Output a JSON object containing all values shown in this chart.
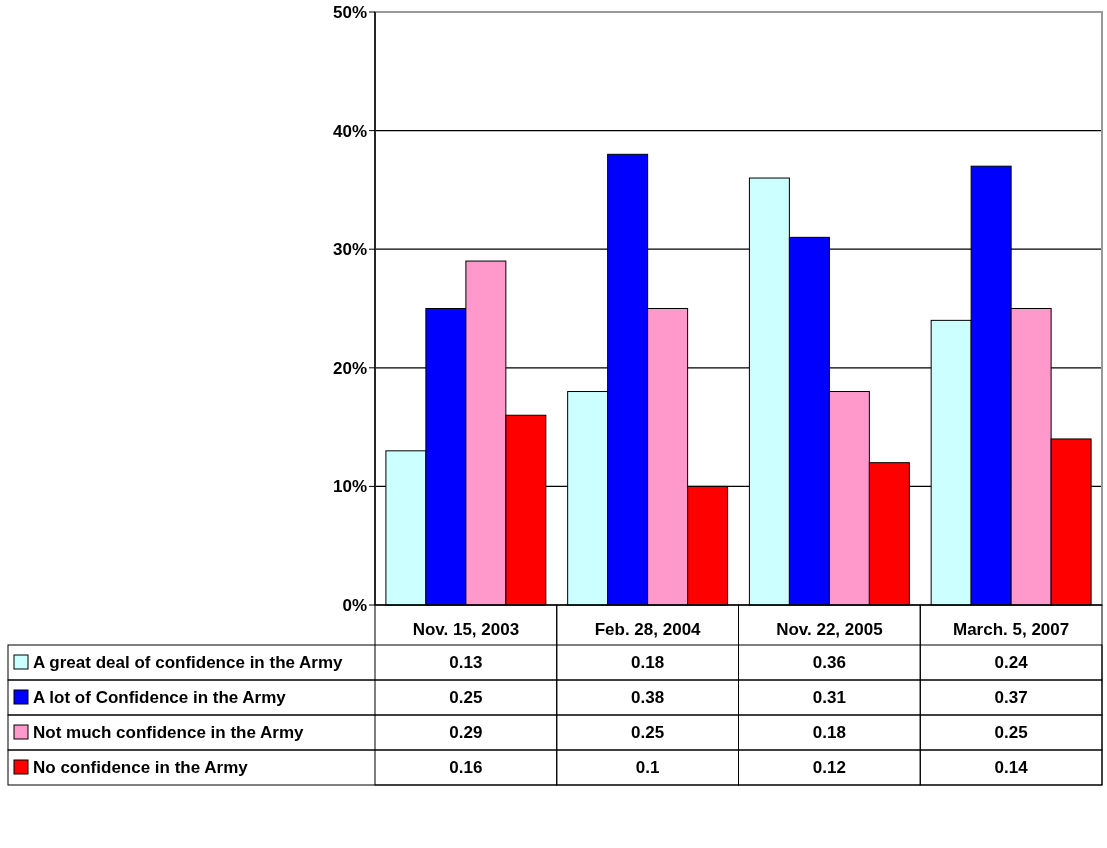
{
  "chart_data": {
    "type": "bar",
    "categories": [
      "Nov. 15, 2003",
      "Feb. 28, 2004",
      "Nov. 22, 2005",
      "March. 5, 2007"
    ],
    "series": [
      {
        "name": "A great deal of confidence in the Army",
        "color": "#ccffff",
        "values": [
          0.13,
          0.18,
          0.36,
          0.24
        ]
      },
      {
        "name": "A lot of Confidence in the Army",
        "color": "#0000ff",
        "values": [
          0.25,
          0.38,
          0.31,
          0.37
        ]
      },
      {
        "name": "Not much confidence in the Army",
        "color": "#ff99cc",
        "values": [
          0.29,
          0.25,
          0.18,
          0.25
        ]
      },
      {
        "name": "No confidence in the Army",
        "color": "#ff0000",
        "values": [
          0.16,
          0.1,
          0.12,
          0.14
        ]
      }
    ],
    "ylim": [
      0,
      0.5
    ],
    "yticks": [
      {
        "value": 0,
        "label": "0%"
      },
      {
        "value": 0.1,
        "label": "10%"
      },
      {
        "value": 0.2,
        "label": "20%"
      },
      {
        "value": 0.3,
        "label": "30%"
      },
      {
        "value": 0.4,
        "label": "40%"
      },
      {
        "value": 0.5,
        "label": "50%"
      }
    ],
    "grid": "y",
    "legend": "bottom",
    "data_labels": true
  }
}
